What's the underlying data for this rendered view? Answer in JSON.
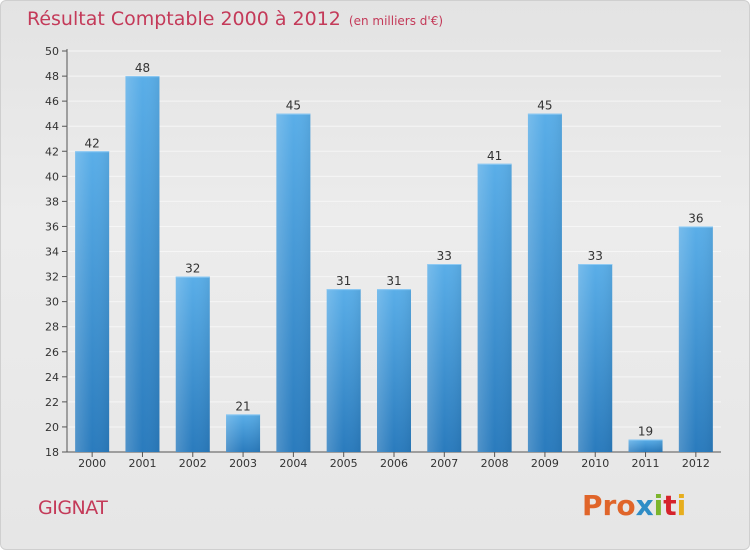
{
  "chart_data": {
    "type": "bar",
    "title": "Résultat Comptable 2000 à 2012",
    "subtitle": "(en milliers d'€)",
    "categories": [
      "2000",
      "2001",
      "2002",
      "2003",
      "2004",
      "2005",
      "2006",
      "2007",
      "2008",
      "2009",
      "2010",
      "2011",
      "2012"
    ],
    "values": [
      42,
      48,
      32,
      21,
      45,
      31,
      31,
      33,
      41,
      45,
      33,
      19,
      36
    ],
    "ylim": [
      18,
      50
    ],
    "yticks": [
      18,
      20,
      22,
      24,
      26,
      28,
      30,
      32,
      34,
      36,
      38,
      40,
      42,
      44,
      46,
      48,
      50
    ],
    "grid": true,
    "xlabel": "",
    "ylabel": ""
  },
  "commune": "GIGNAT",
  "brand": {
    "letters": [
      "Pro",
      "x",
      "i",
      "t",
      "i"
    ]
  },
  "colors": {
    "title": "#c43a59",
    "bar_top": "#5aaee8",
    "bar_bottom": "#2a7bbd",
    "grid": "#f6f6f6"
  }
}
